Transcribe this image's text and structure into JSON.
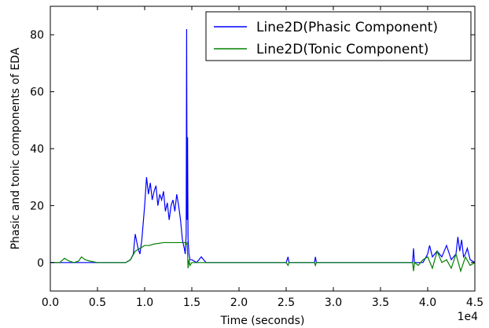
{
  "chart_data": {
    "type": "line",
    "title": "",
    "xlabel": "Time (seconds)",
    "ylabel": "Phasic and tonic components of EDA",
    "x_offset_label": "1e4",
    "xlim": [
      0,
      4.5
    ],
    "ylim": [
      -10,
      90
    ],
    "x_ticks": [
      0.0,
      0.5,
      1.0,
      1.5,
      2.0,
      2.5,
      3.0,
      3.5,
      4.0,
      4.5
    ],
    "x_tick_labels": [
      "0.0",
      "0.5",
      "1.0",
      "1.5",
      "2.0",
      "2.5",
      "3.0",
      "3.5",
      "4.0",
      "4.5"
    ],
    "y_ticks": [
      0,
      20,
      40,
      60,
      80
    ],
    "y_tick_labels": [
      "0",
      "20",
      "40",
      "60",
      "80"
    ],
    "grid": false,
    "legend_position": "top-right",
    "series": [
      {
        "name": "Line2D(Phasic Component)",
        "color": "#0000ff",
        "x": [
          0.0,
          0.1,
          0.3,
          0.5,
          0.7,
          0.8,
          0.85,
          0.88,
          0.9,
          0.93,
          0.95,
          0.97,
          1.0,
          1.02,
          1.04,
          1.06,
          1.08,
          1.1,
          1.12,
          1.14,
          1.16,
          1.18,
          1.2,
          1.22,
          1.24,
          1.26,
          1.28,
          1.3,
          1.32,
          1.34,
          1.36,
          1.38,
          1.4,
          1.42,
          1.43,
          1.44,
          1.445,
          1.45,
          1.455,
          1.46,
          1.47,
          1.48,
          1.5,
          1.55,
          1.6,
          1.65,
          1.7,
          2.0,
          2.5,
          2.52,
          2.53,
          2.54,
          2.8,
          2.81,
          2.82,
          3.0,
          3.5,
          3.84,
          3.85,
          3.86,
          3.9,
          3.95,
          4.0,
          4.02,
          4.05,
          4.1,
          4.15,
          4.2,
          4.25,
          4.3,
          4.32,
          4.34,
          4.36,
          4.38,
          4.4,
          4.42,
          4.45,
          4.5
        ],
        "y": [
          0,
          0,
          0,
          0,
          0,
          0,
          1,
          3,
          10,
          5,
          3,
          8,
          20,
          30,
          24,
          28,
          22,
          25,
          27,
          20,
          24,
          22,
          25,
          18,
          21,
          15,
          20,
          22,
          18,
          24,
          20,
          15,
          8,
          5,
          3,
          10,
          82,
          15,
          44,
          8,
          3,
          1,
          1,
          0,
          2,
          0,
          0,
          0,
          0,
          2,
          0,
          0,
          0,
          2,
          0,
          0,
          0,
          0,
          5,
          0,
          0,
          0,
          3,
          6,
          2,
          4,
          2,
          6,
          1,
          3,
          9,
          4,
          8,
          2,
          3,
          5,
          1,
          0
        ]
      },
      {
        "name": "Line2D(Tonic Component)",
        "color": "#008000",
        "x": [
          0.0,
          0.1,
          0.15,
          0.2,
          0.25,
          0.3,
          0.33,
          0.37,
          0.42,
          0.5,
          0.6,
          0.7,
          0.8,
          0.85,
          0.9,
          0.95,
          1.0,
          1.05,
          1.1,
          1.2,
          1.3,
          1.35,
          1.4,
          1.43,
          1.44,
          1.45,
          1.455,
          1.46,
          1.47,
          1.48,
          1.5,
          1.55,
          1.6,
          1.65,
          1.7,
          2.0,
          2.5,
          2.52,
          2.53,
          2.54,
          2.8,
          2.81,
          2.82,
          3.0,
          3.5,
          3.84,
          3.85,
          3.86,
          3.9,
          3.95,
          4.0,
          4.05,
          4.1,
          4.15,
          4.2,
          4.25,
          4.3,
          4.35,
          4.4,
          4.45,
          4.5
        ],
        "y": [
          0,
          0,
          1.5,
          0.5,
          0,
          0.5,
          2,
          1,
          0.5,
          0,
          0,
          0,
          0,
          1,
          4,
          5,
          6,
          6,
          6.5,
          7,
          7,
          7,
          7,
          7,
          6.5,
          7,
          3,
          -2,
          1,
          -1,
          0,
          0,
          0,
          0,
          0,
          0,
          0,
          -1,
          0,
          0,
          0,
          -1,
          0,
          0,
          0,
          0,
          -3,
          0,
          -1,
          1,
          2,
          -2,
          4,
          0,
          1,
          -2,
          3,
          -3,
          2,
          -1,
          0
        ]
      }
    ]
  }
}
